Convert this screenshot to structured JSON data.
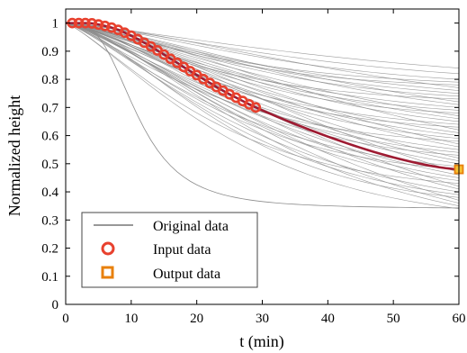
{
  "chart_data": {
    "type": "line",
    "xlabel": "t (min)",
    "ylabel": "Normalized height",
    "xlim": [
      0,
      60
    ],
    "ylim": [
      0,
      1.05
    ],
    "x_ticks": [
      "0",
      "10",
      "20",
      "30",
      "40",
      "50",
      "60"
    ],
    "y_ticks": [
      "0",
      "0.1",
      "0.2",
      "0.3",
      "0.4",
      "0.5",
      "0.6",
      "0.7",
      "0.8",
      "0.9",
      "1"
    ],
    "grid": false,
    "legend_placement": "bottom-left",
    "legend": [
      "Original data",
      "Input data",
      "Output data"
    ],
    "colors": {
      "original": "#8c8c8c",
      "input_marker": "#e8412e",
      "input_line": "#9e1b32",
      "output_marker": "#e8800c",
      "output_fill": "#f6c234"
    },
    "series": [
      {
        "name": "Input data",
        "x": [
          1,
          2,
          3,
          4,
          5,
          6,
          7,
          8,
          9,
          10,
          11,
          12,
          13,
          14,
          15,
          16,
          17,
          18,
          19,
          20,
          21,
          22,
          23,
          24,
          25,
          26,
          27,
          28,
          29
        ],
        "y": [
          1.0,
          1.0,
          1.0,
          0.999,
          0.995,
          0.99,
          0.984,
          0.976,
          0.966,
          0.955,
          0.943,
          0.93,
          0.917,
          0.903,
          0.888,
          0.873,
          0.859,
          0.844,
          0.829,
          0.815,
          0.801,
          0.787,
          0.773,
          0.76,
          0.747,
          0.735,
          0.723,
          0.711,
          0.7
        ]
      },
      {
        "name": "Output data",
        "x": [
          60
        ],
        "y": [
          0.48
        ]
      }
    ],
    "original_curve_final_values": [
      0.84,
      0.82,
      0.8,
      0.79,
      0.78,
      0.77,
      0.76,
      0.75,
      0.74,
      0.73,
      0.72,
      0.71,
      0.7,
      0.69,
      0.68,
      0.67,
      0.66,
      0.65,
      0.64,
      0.63,
      0.62,
      0.61,
      0.6,
      0.59,
      0.58,
      0.57,
      0.56,
      0.55,
      0.54,
      0.53,
      0.52,
      0.51,
      0.5,
      0.49,
      0.48,
      0.47,
      0.46,
      0.45,
      0.44,
      0.43,
      0.42,
      0.41,
      0.4,
      0.39,
      0.38,
      0.37,
      0.36,
      0.35,
      0.34
    ]
  }
}
